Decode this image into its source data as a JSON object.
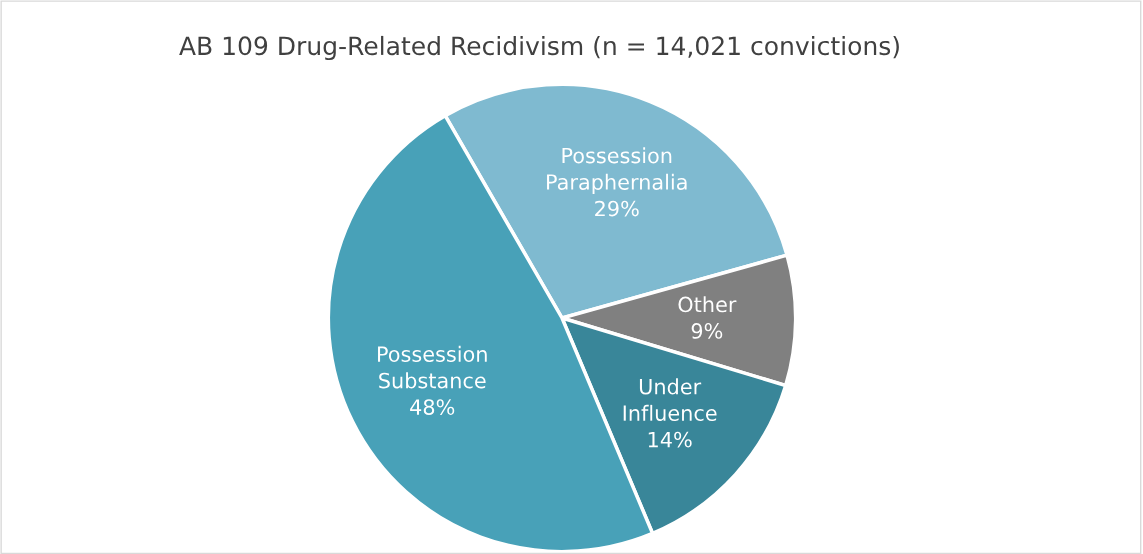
{
  "chart_data": {
    "type": "pie",
    "title": "AB 109 Drug-Related Recidivism (n = 14,021 convictions)",
    "categories": [
      "Possession Paraphernalia",
      "Other",
      "Under Influence",
      "Possession Substance"
    ],
    "values": [
      29,
      9,
      14,
      48
    ],
    "colors": [
      "#7fbad0",
      "#808080",
      "#398699",
      "#48a1b8"
    ],
    "value_labels": [
      "29%",
      "9%",
      "14%",
      "48%"
    ],
    "legend": false
  }
}
